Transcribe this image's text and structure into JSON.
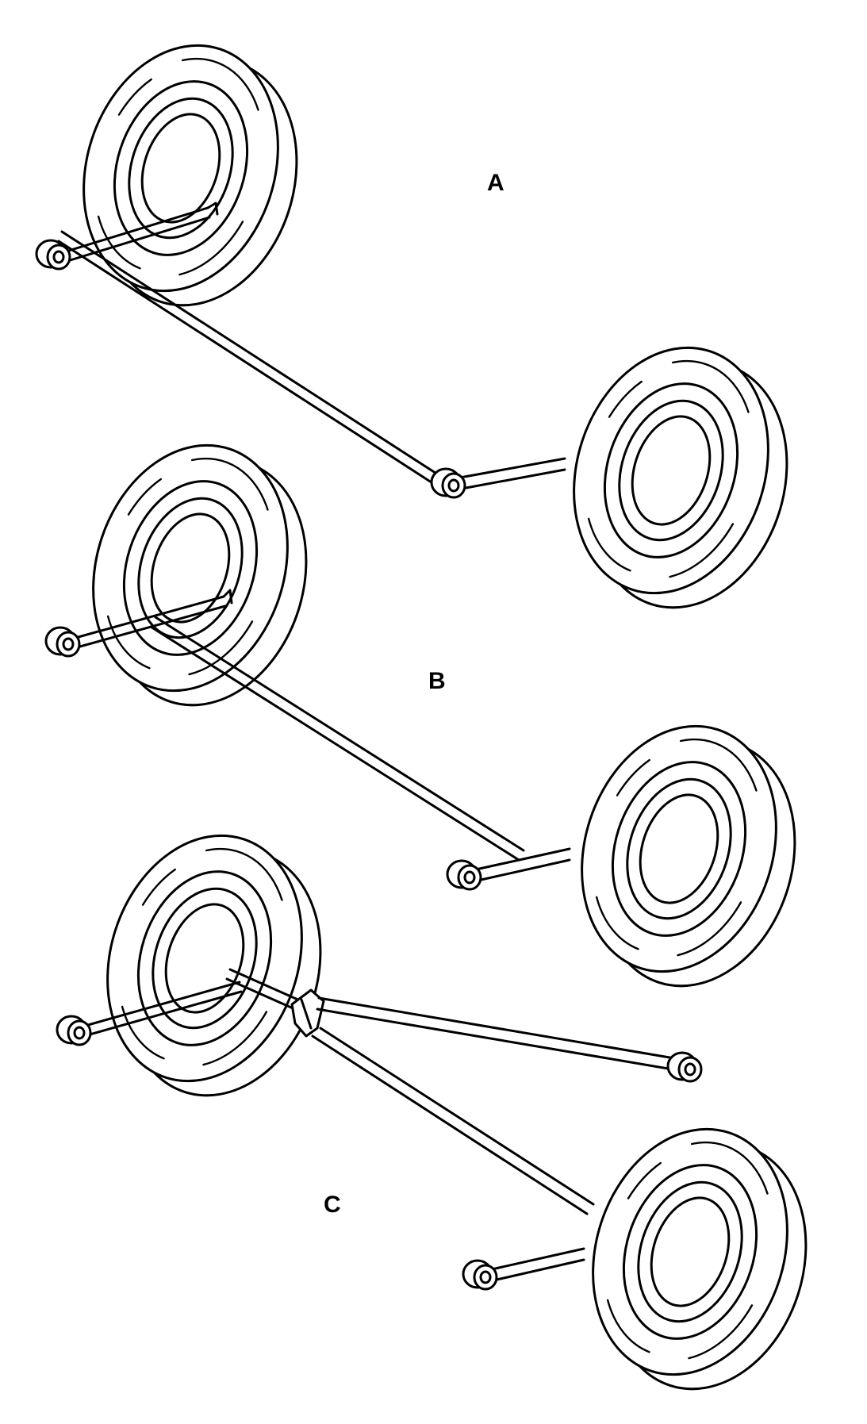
{
  "figure": {
    "panels": [
      {
        "id": "A",
        "label": "A"
      },
      {
        "id": "B",
        "label": "B"
      },
      {
        "id": "C",
        "label": "C"
      }
    ]
  },
  "style": {
    "ink": "#000000",
    "background": "#ffffff"
  }
}
